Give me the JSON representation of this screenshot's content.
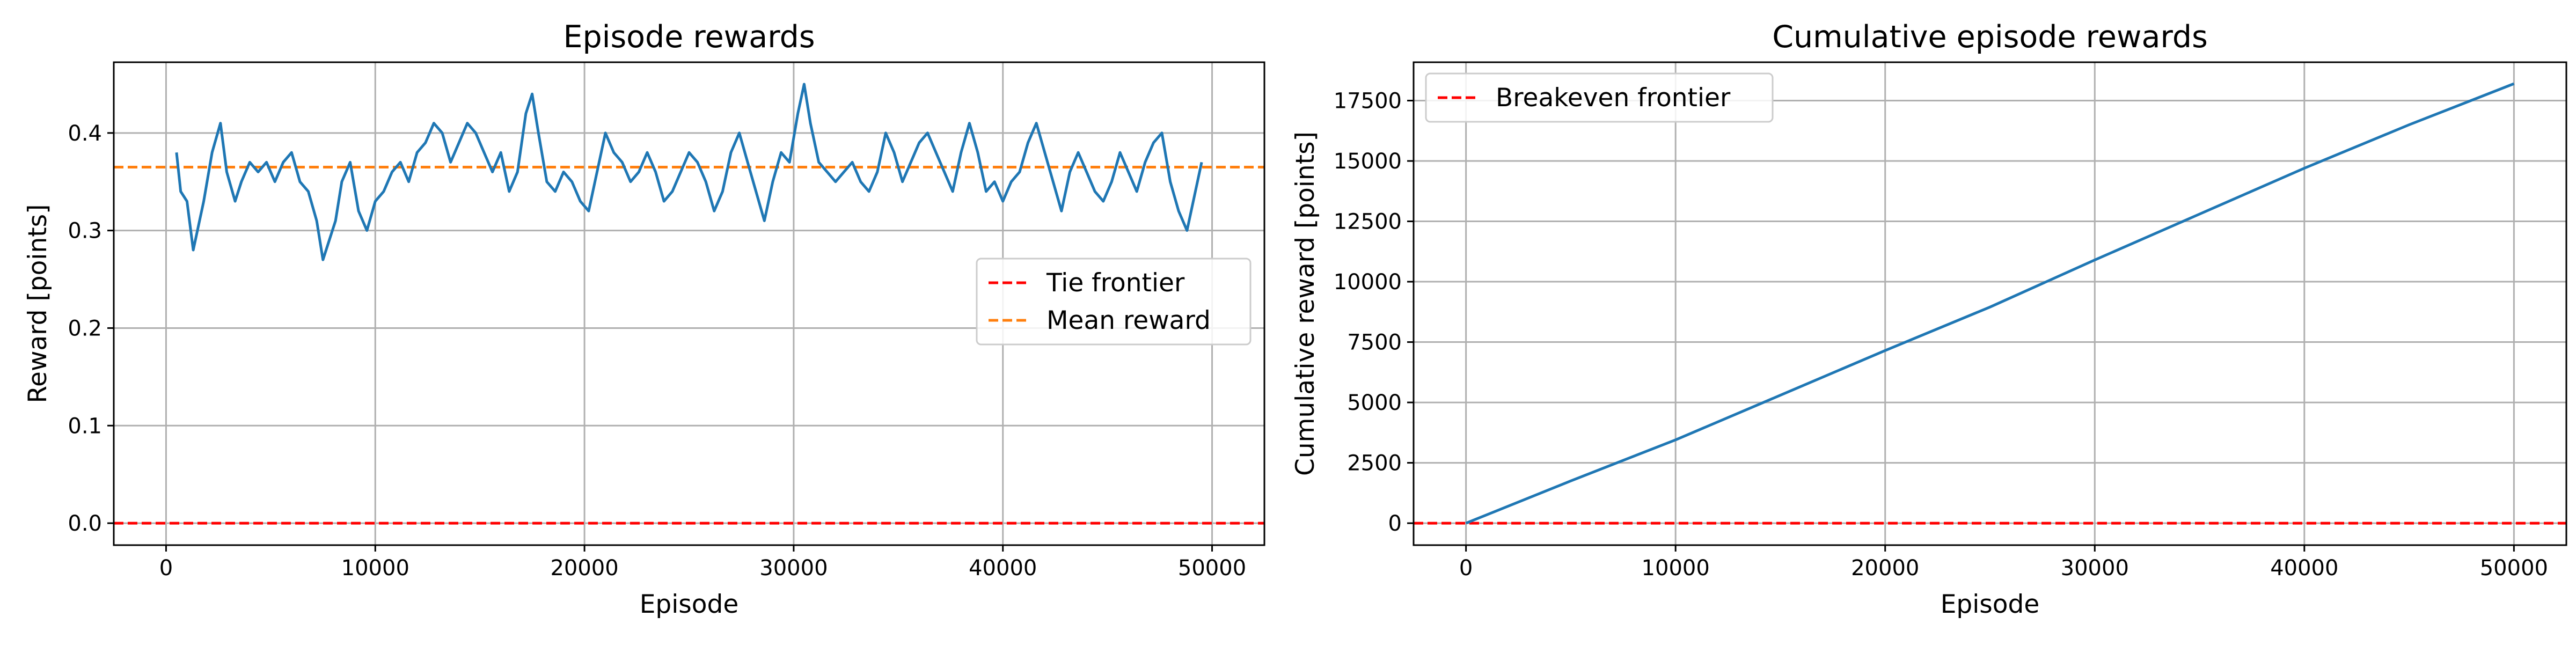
{
  "chart_data": [
    {
      "type": "line",
      "title": "Episode rewards",
      "xlabel": "Episode",
      "ylabel": "Reward [points]",
      "xlim": [
        -2500,
        52500
      ],
      "ylim": [
        -0.0225,
        0.4725
      ],
      "xticks": [
        0,
        10000,
        20000,
        30000,
        40000,
        50000
      ],
      "yticks": [
        0.0,
        0.1,
        0.2,
        0.3,
        0.4
      ],
      "xtick_labels": [
        "0",
        "10000",
        "20000",
        "30000",
        "40000",
        "50000"
      ],
      "ytick_labels": [
        "0.0",
        "0.1",
        "0.2",
        "0.3",
        "0.4"
      ],
      "grid": true,
      "legend_position": "center-right",
      "colors": {
        "series": "#1f77b4",
        "tie": "#ff0000",
        "mean": "#ff7f0e"
      },
      "series": [
        {
          "name": "",
          "x": [
            500,
            700,
            1000,
            1300,
            1500,
            1800,
            2200,
            2600,
            2900,
            3300,
            3600,
            4000,
            4400,
            4800,
            5200,
            5600,
            6000,
            6400,
            6800,
            7200,
            7500,
            7800,
            8100,
            8400,
            8800,
            9200,
            9600,
            10000,
            10400,
            10800,
            11200,
            11600,
            12000,
            12400,
            12800,
            13200,
            13600,
            14000,
            14400,
            14800,
            15200,
            15600,
            16000,
            16400,
            16800,
            17200,
            17500,
            17800,
            18200,
            18600,
            19000,
            19400,
            19800,
            20200,
            20600,
            21000,
            21400,
            21800,
            22200,
            22600,
            23000,
            23400,
            23800,
            24200,
            24600,
            25000,
            25400,
            25800,
            26200,
            26600,
            27000,
            27400,
            27800,
            28200,
            28600,
            29000,
            29400,
            29800,
            30200,
            30500,
            30800,
            31200,
            31600,
            32000,
            32400,
            32800,
            33200,
            33600,
            34000,
            34400,
            34800,
            35200,
            35600,
            36000,
            36400,
            36800,
            37200,
            37600,
            38000,
            38400,
            38800,
            39200,
            39600,
            40000,
            40400,
            40800,
            41200,
            41600,
            42000,
            42400,
            42800,
            43200,
            43600,
            44000,
            44400,
            44800,
            45200,
            45600,
            46000,
            46400,
            46800,
            47200,
            47600,
            48000,
            48400,
            48800,
            49200,
            49500
          ],
          "values": [
            0.38,
            0.34,
            0.33,
            0.28,
            0.3,
            0.33,
            0.38,
            0.41,
            0.36,
            0.33,
            0.35,
            0.37,
            0.36,
            0.37,
            0.35,
            0.37,
            0.38,
            0.35,
            0.34,
            0.31,
            0.27,
            0.29,
            0.31,
            0.35,
            0.37,
            0.32,
            0.3,
            0.33,
            0.34,
            0.36,
            0.37,
            0.35,
            0.38,
            0.39,
            0.41,
            0.4,
            0.37,
            0.39,
            0.41,
            0.4,
            0.38,
            0.36,
            0.38,
            0.34,
            0.36,
            0.42,
            0.44,
            0.4,
            0.35,
            0.34,
            0.36,
            0.35,
            0.33,
            0.32,
            0.36,
            0.4,
            0.38,
            0.37,
            0.35,
            0.36,
            0.38,
            0.36,
            0.33,
            0.34,
            0.36,
            0.38,
            0.37,
            0.35,
            0.32,
            0.34,
            0.38,
            0.4,
            0.37,
            0.34,
            0.31,
            0.35,
            0.38,
            0.37,
            0.42,
            0.45,
            0.41,
            0.37,
            0.36,
            0.35,
            0.36,
            0.37,
            0.35,
            0.34,
            0.36,
            0.4,
            0.38,
            0.35,
            0.37,
            0.39,
            0.4,
            0.38,
            0.36,
            0.34,
            0.38,
            0.41,
            0.38,
            0.34,
            0.35,
            0.33,
            0.35,
            0.36,
            0.39,
            0.41,
            0.38,
            0.35,
            0.32,
            0.36,
            0.38,
            0.36,
            0.34,
            0.33,
            0.35,
            0.38,
            0.36,
            0.34,
            0.37,
            0.39,
            0.4,
            0.35,
            0.32,
            0.3,
            0.34,
            0.37
          ]
        }
      ],
      "reference_lines": [
        {
          "name": "Tie frontier",
          "y": 0.0
        },
        {
          "name": "Mean reward",
          "y": 0.365
        }
      ]
    },
    {
      "type": "line",
      "title": "Cumulative episode rewards",
      "xlabel": "Episode",
      "ylabel": "Cumulative reward [points]",
      "xlim": [
        -2500,
        52500
      ],
      "ylim": [
        -909,
        19089
      ],
      "xticks": [
        0,
        10000,
        20000,
        30000,
        40000,
        50000
      ],
      "yticks": [
        0,
        2500,
        5000,
        7500,
        10000,
        12500,
        15000,
        17500
      ],
      "xtick_labels": [
        "0",
        "10000",
        "20000",
        "30000",
        "40000",
        "50000"
      ],
      "ytick_labels": [
        "0",
        "2500",
        "5000",
        "7500",
        "10000",
        "12500",
        "15000",
        "17500"
      ],
      "grid": true,
      "legend_position": "top-left",
      "colors": {
        "series": "#1f77b4",
        "breakeven": "#ff0000"
      },
      "series": [
        {
          "name": "",
          "x": [
            0,
            5000,
            10000,
            15000,
            20000,
            25000,
            30000,
            35000,
            40000,
            45000,
            50000
          ],
          "values": [
            0,
            1750,
            3450,
            5300,
            7150,
            8950,
            10900,
            12800,
            14700,
            16500,
            18200
          ]
        }
      ],
      "reference_lines": [
        {
          "name": "Breakeven frontier",
          "y": 0
        }
      ]
    }
  ]
}
